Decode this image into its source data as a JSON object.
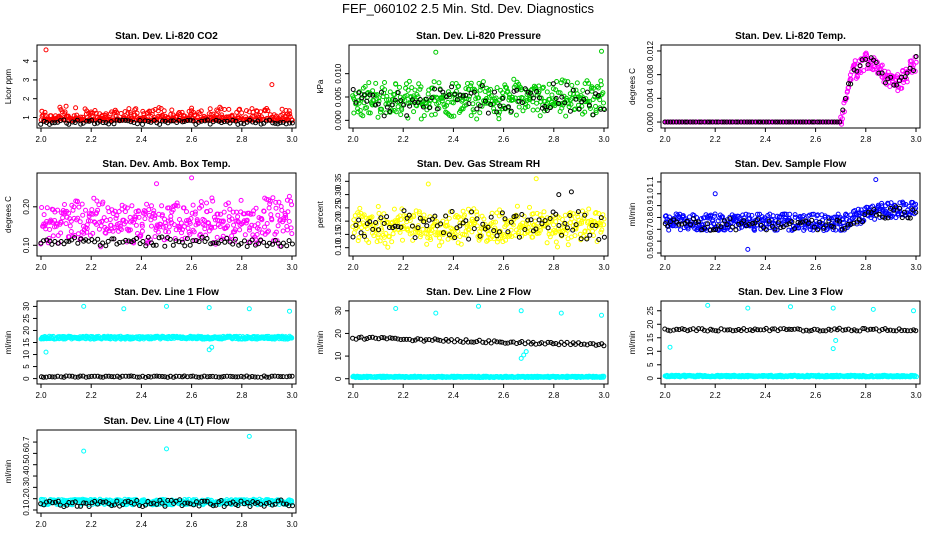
{
  "main_title": "FEF_060102  2.5 Min. Std. Dev. Diagnostics",
  "chart_data": [
    {
      "type": "scatter",
      "title": "Stan. Dev. Li-820 CO2",
      "xlabel": "",
      "ylabel": "Licor ppm",
      "xlim": [
        2.0,
        3.0
      ],
      "ylim": [
        0.6,
        4.7
      ],
      "xticks": [
        "2.0",
        "2.2",
        "2.4",
        "2.6",
        "2.8",
        "3.0"
      ],
      "yticks": [
        "1",
        "2",
        "3",
        "4"
      ],
      "grid": false,
      "series": [
        {
          "color": "#ff0000",
          "noise": "low",
          "base": 0.85,
          "spread": 0.35,
          "outliers": [
            [
              2.02,
              4.6
            ],
            [
              2.92,
              2.75
            ],
            [
              2.1,
              1.6
            ],
            [
              2.6,
              1.5
            ],
            [
              2.3,
              1.3
            ],
            [
              2.7,
              1.4
            ]
          ]
        },
        {
          "color": "#000000",
          "noise": "flat",
          "base": 0.75,
          "spread": 0.12,
          "outliers": []
        }
      ]
    },
    {
      "type": "scatter",
      "title": "Stan. Dev. Li-820 Pressure",
      "xlabel": "",
      "ylabel": "kPa",
      "xlim": [
        2.0,
        3.0
      ],
      "ylim": [
        -0.001,
        0.0155
      ],
      "xticks": [
        "2.0",
        "2.2",
        "2.4",
        "2.6",
        "2.8",
        "3.0"
      ],
      "yticks": [
        "0.000",
        "0.005",
        "0.010"
      ],
      "grid": false,
      "series": [
        {
          "color": "#00cc00",
          "noise": "band",
          "base": 0.0045,
          "spread": 0.0045,
          "outliers": [
            [
              2.33,
              0.0146
            ],
            [
              2.99,
              0.0148
            ],
            [
              2.66,
              0.0077
            ]
          ]
        },
        {
          "color": "#000000",
          "noise": "band",
          "base": 0.0045,
          "spread": 0.004,
          "outliers": []
        }
      ]
    },
    {
      "type": "scatter",
      "title": "Stan. Dev. Li-820 Temp.",
      "xlabel": "",
      "ylabel": "degrees C",
      "xlim": [
        2.0,
        3.0
      ],
      "ylim": [
        -0.0005,
        0.0125
      ],
      "xticks": [
        "2.0",
        "2.2",
        "2.4",
        "2.6",
        "2.8",
        "3.0"
      ],
      "yticks": [
        "0.000",
        "0.004",
        "0.008",
        "0.012"
      ],
      "grid": false,
      "series": [
        {
          "color": "#ff00ff",
          "noise": "step",
          "base": 0.0,
          "spread": 0.002,
          "outliers": []
        },
        {
          "color": "#000000",
          "noise": "step",
          "base": 0.0,
          "spread": 0.0015,
          "outliers": []
        }
      ]
    },
    {
      "type": "scatter",
      "title": "Stan. Dev. Amb. Box Temp.",
      "xlabel": "",
      "ylabel": "degrees C",
      "xlim": [
        2.0,
        3.0
      ],
      "ylim": [
        0.08,
        0.28
      ],
      "xticks": [
        "2.0",
        "2.2",
        "2.4",
        "2.6",
        "2.8",
        "3.0"
      ],
      "yticks": [
        "0.10",
        "0.20"
      ],
      "grid": false,
      "series": [
        {
          "color": "#ff00ff",
          "noise": "band",
          "base": 0.16,
          "spread": 0.07,
          "outliers": [
            [
              2.6,
              0.275
            ],
            [
              2.46,
              0.26
            ]
          ]
        },
        {
          "color": "#000000",
          "noise": "band",
          "base": 0.11,
          "spread": 0.015,
          "outliers": []
        }
      ]
    },
    {
      "type": "scatter",
      "title": "Stan. Dev. Gas Stream RH",
      "xlabel": "",
      "ylabel": "percent",
      "xlim": [
        2.0,
        3.0
      ],
      "ylim": [
        0.08,
        0.37
      ],
      "xticks": [
        "2.0",
        "2.2",
        "2.4",
        "2.6",
        "2.8",
        "3.0"
      ],
      "yticks": [
        "0.10",
        "0.15",
        "0.20",
        "0.25",
        "0.30",
        "0.35"
      ],
      "grid": false,
      "series": [
        {
          "color": "#ffff00",
          "noise": "band",
          "base": 0.18,
          "spread": 0.08,
          "outliers": [
            [
              2.73,
              0.36
            ],
            [
              2.3,
              0.34
            ]
          ]
        },
        {
          "color": "#000000",
          "noise": "band",
          "base": 0.18,
          "spread": 0.07,
          "outliers": [
            [
              2.82,
              0.3
            ],
            [
              2.87,
              0.31
            ]
          ]
        }
      ]
    },
    {
      "type": "scatter",
      "title": "Stan. Dev. Sample Flow",
      "xlabel": "",
      "ylabel": "ml/min",
      "xlim": [
        2.0,
        3.0
      ],
      "ylim": [
        0.5,
        1.15
      ],
      "xticks": [
        "2.0",
        "2.2",
        "2.4",
        "2.6",
        "2.8",
        "3.0"
      ],
      "yticks": [
        "0.5",
        "0.6",
        "0.7",
        "0.8",
        "0.9",
        "1.0",
        "1.1"
      ],
      "grid": false,
      "series": [
        {
          "color": "#0000ff",
          "noise": "rise",
          "base": 0.76,
          "spread": 0.07,
          "outliers": [
            [
              2.84,
              1.12
            ],
            [
              2.2,
              1.0
            ],
            [
              2.33,
              0.53
            ]
          ]
        },
        {
          "color": "#000000",
          "noise": "rise",
          "base": 0.74,
          "spread": 0.05,
          "outliers": []
        }
      ]
    },
    {
      "type": "scatter",
      "title": "Stan. Dev. Line 1 Flow",
      "xlabel": "",
      "ylabel": "ml/min",
      "xlim": [
        2.0,
        3.0
      ],
      "ylim": [
        -1,
        31
      ],
      "xticks": [
        "2.0",
        "2.2",
        "2.4",
        "2.6",
        "2.8",
        "3.0"
      ],
      "yticks": [
        "0",
        "5",
        "10",
        "15",
        "20",
        "25",
        "30"
      ],
      "grid": false,
      "series": [
        {
          "color": "#00ffff",
          "noise": "flat",
          "base": 17,
          "spread": 0.6,
          "outliers": [
            [
              2.17,
              30
            ],
            [
              2.33,
              29
            ],
            [
              2.5,
              30
            ],
            [
              2.67,
              29.5
            ],
            [
              2.83,
              29
            ],
            [
              2.99,
              28
            ],
            [
              2.02,
              11
            ],
            [
              2.67,
              12
            ],
            [
              2.68,
              13
            ]
          ]
        },
        {
          "color": "#000000",
          "noise": "flat",
          "base": 0.8,
          "spread": 0.3,
          "outliers": []
        }
      ]
    },
    {
      "type": "scatter",
      "title": "Stan. Dev. Line 2 Flow",
      "xlabel": "",
      "ylabel": "ml/min",
      "xlim": [
        2.0,
        3.0
      ],
      "ylim": [
        -1,
        33
      ],
      "xticks": [
        "2.0",
        "2.2",
        "2.4",
        "2.6",
        "2.8",
        "3.0"
      ],
      "yticks": [
        "0",
        "10",
        "20",
        "30"
      ],
      "grid": false,
      "series": [
        {
          "color": "#00ffff",
          "noise": "flat",
          "base": 0.8,
          "spread": 0.3,
          "outliers": [
            [
              2.17,
              31
            ],
            [
              2.33,
              29
            ],
            [
              2.5,
              32
            ],
            [
              2.67,
              30
            ],
            [
              2.83,
              29
            ],
            [
              2.99,
              28
            ],
            [
              2.67,
              9
            ],
            [
              2.68,
              10.5
            ],
            [
              2.69,
              12
            ]
          ]
        },
        {
          "color": "#000000",
          "noise": "decline",
          "base": 18,
          "spread": 0.6,
          "outliers": []
        }
      ]
    },
    {
      "type": "scatter",
      "title": "Stan. Dev. Line 3 Flow",
      "xlabel": "",
      "ylabel": "ml/min",
      "xlim": [
        2.0,
        3.0
      ],
      "ylim": [
        -1,
        27.5
      ],
      "xticks": [
        "2.0",
        "2.2",
        "2.4",
        "2.6",
        "2.8",
        "3.0"
      ],
      "yticks": [
        "0",
        "5",
        "10",
        "15",
        "20",
        "25"
      ],
      "grid": false,
      "series": [
        {
          "color": "#00ffff",
          "noise": "flat",
          "base": 0.8,
          "spread": 0.3,
          "outliers": [
            [
              2.17,
              27
            ],
            [
              2.33,
              26
            ],
            [
              2.5,
              26.5
            ],
            [
              2.67,
              26
            ],
            [
              2.83,
              25.5
            ],
            [
              2.99,
              25
            ],
            [
              2.02,
              11.5
            ],
            [
              2.67,
              11
            ],
            [
              2.68,
              14
            ]
          ]
        },
        {
          "color": "#000000",
          "noise": "flat",
          "base": 18,
          "spread": 0.5,
          "outliers": []
        }
      ]
    },
    {
      "type": "scatter",
      "title": "Stan. Dev. Line 4 (LT) Flow",
      "xlabel": "",
      "ylabel": "ml/min",
      "xlim": [
        2.0,
        3.0
      ],
      "ylim": [
        0.1,
        0.78
      ],
      "xticks": [
        "2.0",
        "2.2",
        "2.4",
        "2.6",
        "2.8",
        "3.0"
      ],
      "yticks": [
        "0.1",
        "0.2",
        "0.3",
        "0.4",
        "0.5",
        "0.6",
        "0.7"
      ],
      "grid": false,
      "series": [
        {
          "color": "#00ffff",
          "noise": "flat",
          "base": 0.17,
          "spread": 0.025,
          "outliers": [
            [
              2.17,
              0.62
            ],
            [
              2.5,
              0.64
            ],
            [
              2.83,
              0.75
            ]
          ]
        },
        {
          "color": "#000000",
          "noise": "flat",
          "base": 0.16,
          "spread": 0.03,
          "outliers": []
        }
      ]
    }
  ]
}
